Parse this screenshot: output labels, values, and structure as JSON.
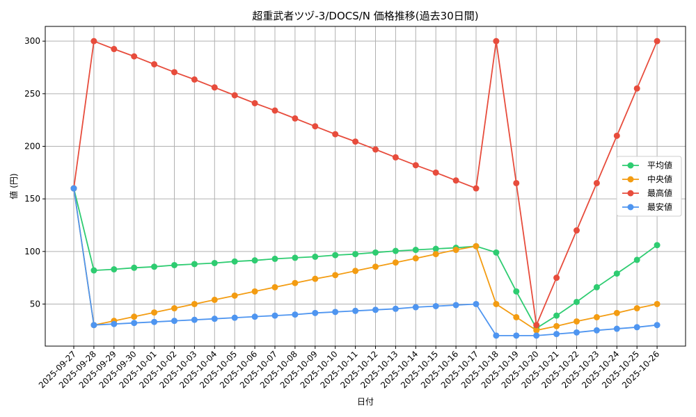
{
  "chart_data": {
    "type": "line",
    "title": "超重武者ツヅ-3/DOCS/N 価格推移(過去30日間)",
    "xlabel": "日付",
    "ylabel": "値 (円)",
    "x": [
      "2025-09-27",
      "2025-09-28",
      "2025-09-29",
      "2025-09-30",
      "2025-10-01",
      "2025-10-02",
      "2025-10-03",
      "2025-10-04",
      "2025-10-05",
      "2025-10-06",
      "2025-10-07",
      "2025-10-08",
      "2025-10-09",
      "2025-10-10",
      "2025-10-11",
      "2025-10-12",
      "2025-10-13",
      "2025-10-14",
      "2025-10-15",
      "2025-10-16",
      "2025-10-17",
      "2025-10-18",
      "2025-10-19",
      "2025-10-20",
      "2025-10-21",
      "2025-10-22",
      "2025-10-23",
      "2025-10-24",
      "2025-10-25",
      "2025-10-26"
    ],
    "yticks": [
      50,
      100,
      150,
      200,
      250,
      300
    ],
    "ylim": [
      10,
      314
    ],
    "grid": true,
    "legend_position": "right",
    "series": [
      {
        "name": "平均値",
        "color": "#2ecc71",
        "values": [
          160,
          82,
          83,
          84.5,
          85.5,
          87,
          88,
          89,
          90.5,
          91.5,
          93,
          94,
          95,
          96.5,
          97.5,
          99,
          100.5,
          101.5,
          102.5,
          103.5,
          105,
          99,
          62,
          27,
          39,
          52,
          66,
          79,
          92,
          106
        ]
      },
      {
        "name": "中央値",
        "color": "#f39c12",
        "values": [
          160,
          30,
          34,
          38,
          42,
          46,
          50,
          54,
          58,
          62,
          66,
          70,
          74,
          77.5,
          81.5,
          85.5,
          89.5,
          93.5,
          97.5,
          101.5,
          105,
          50,
          37.5,
          25,
          29,
          33.5,
          37.5,
          41.5,
          46,
          50
        ]
      },
      {
        "name": "最高値",
        "color": "#e74c3c",
        "values": [
          160,
          300,
          292.5,
          285.5,
          278,
          270.5,
          263.5,
          256,
          248.5,
          241,
          234,
          226.5,
          219,
          211.5,
          204.5,
          197,
          189.5,
          182,
          175,
          167.5,
          160,
          300,
          165,
          30,
          75,
          120,
          165,
          210,
          255,
          300
        ]
      },
      {
        "name": "最安値",
        "color": "#4e95f0",
        "values": [
          160,
          30,
          31,
          32,
          33,
          34,
          35,
          36,
          37,
          38,
          39,
          40,
          41.5,
          42.5,
          43.5,
          44.5,
          45.5,
          47,
          48,
          49,
          50,
          20,
          20,
          20,
          21.5,
          23,
          25,
          26.5,
          28,
          30
        ]
      }
    ]
  }
}
